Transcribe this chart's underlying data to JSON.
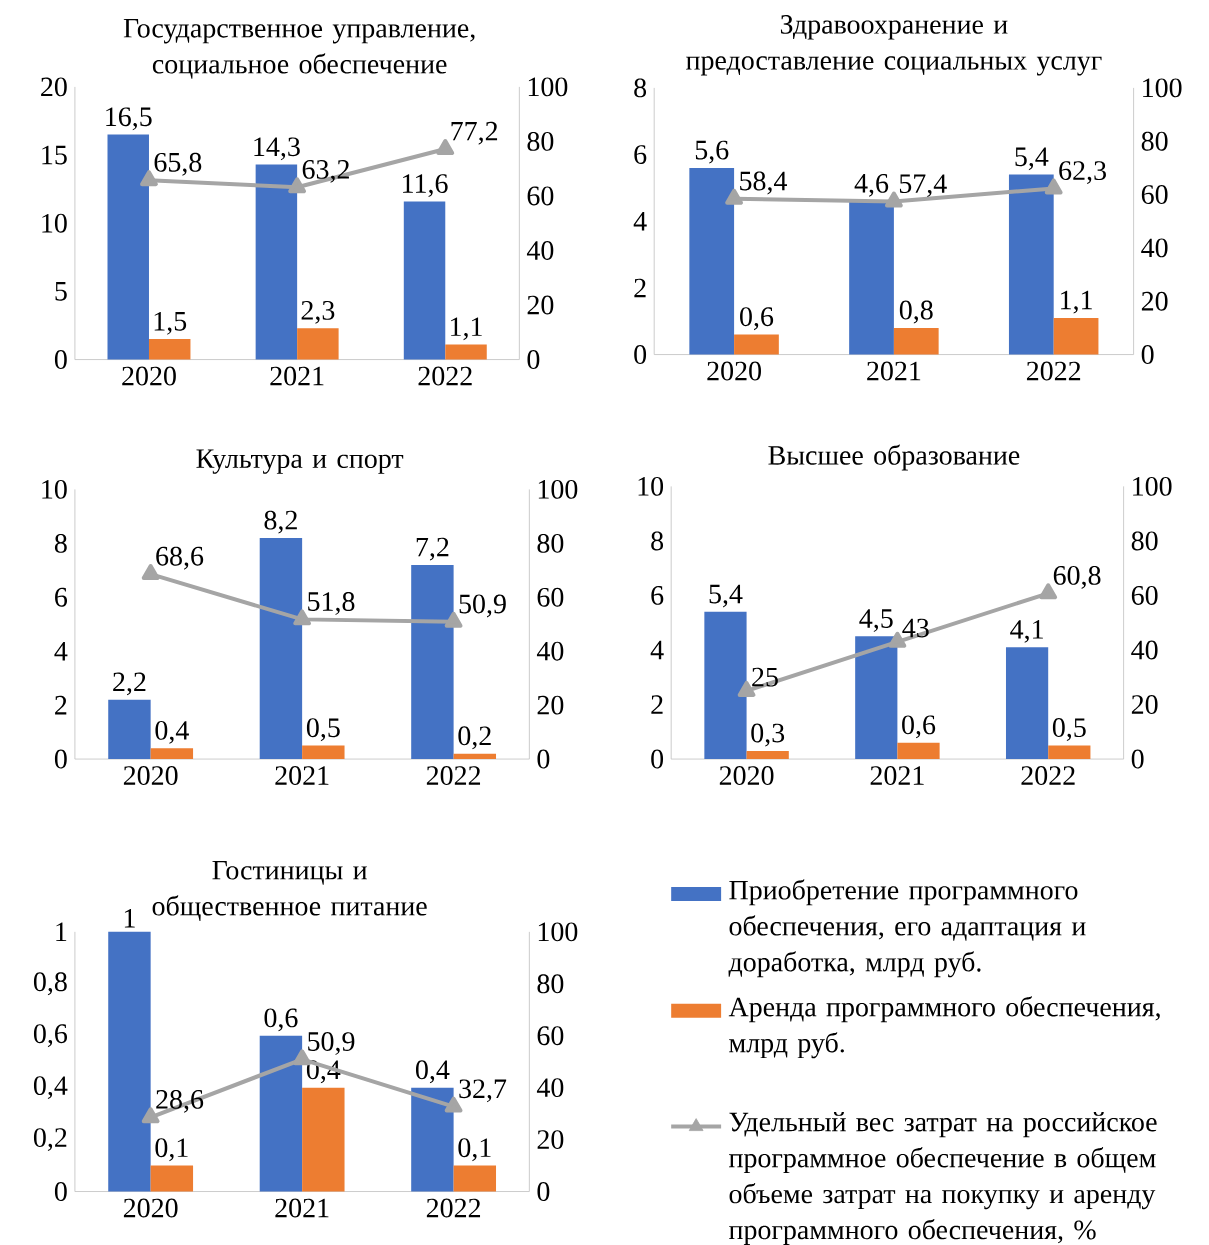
{
  "chart_data": [
    {
      "type": "bar",
      "title": "Государственное управление, социальное обеспечение",
      "categories": [
        "2020",
        "2021",
        "2022"
      ],
      "ylim": [
        0,
        20
      ],
      "yticks": [
        0,
        5,
        10,
        15,
        20
      ],
      "y2lim": [
        0,
        100
      ],
      "y2ticks": [
        0,
        20,
        40,
        60,
        80,
        100
      ],
      "series": [
        {
          "type": "bar",
          "color": "#4472c4",
          "values": [
            16.5,
            14.3,
            11.6
          ],
          "value_labels": [
            "16,5",
            "14,3",
            "11,6"
          ]
        },
        {
          "type": "bar",
          "color": "#ed7d31",
          "values": [
            1.5,
            2.3,
            1.1
          ],
          "value_labels": [
            "1,5",
            "2,3",
            "1,1"
          ]
        },
        {
          "type": "line",
          "axis": "y2",
          "marker": "triangle",
          "color": "#a5a5a5",
          "values": [
            65.8,
            63.2,
            77.2
          ],
          "value_labels": [
            "65,8",
            "63,2",
            "77,2"
          ]
        }
      ]
    },
    {
      "type": "bar",
      "title": "Здравоохранение и предоставление социальных услуг",
      "categories": [
        "2020",
        "2021",
        "2022"
      ],
      "ylim": [
        0,
        8
      ],
      "yticks": [
        0,
        2,
        4,
        6,
        8
      ],
      "y2lim": [
        0,
        100
      ],
      "y2ticks": [
        0,
        20,
        40,
        60,
        80,
        100
      ],
      "series": [
        {
          "type": "bar",
          "color": "#4472c4",
          "values": [
            5.6,
            4.6,
            5.4
          ],
          "value_labels": [
            "5,6",
            "4,6",
            "5,4"
          ]
        },
        {
          "type": "bar",
          "color": "#ed7d31",
          "values": [
            0.6,
            0.8,
            1.1
          ],
          "value_labels": [
            "0,6",
            "0,8",
            "1,1"
          ]
        },
        {
          "type": "line",
          "axis": "y2",
          "marker": "triangle",
          "color": "#a5a5a5",
          "values": [
            58.4,
            57.4,
            62.3
          ],
          "value_labels": [
            "58,4",
            "57,4",
            "62,3"
          ]
        }
      ]
    },
    {
      "type": "bar",
      "title": "Культура и спорт",
      "categories": [
        "2020",
        "2021",
        "2022"
      ],
      "ylim": [
        0,
        10
      ],
      "yticks": [
        0,
        2,
        4,
        6,
        8,
        10
      ],
      "y2lim": [
        0,
        100
      ],
      "y2ticks": [
        0,
        20,
        40,
        60,
        80,
        100
      ],
      "series": [
        {
          "type": "bar",
          "color": "#4472c4",
          "values": [
            2.2,
            8.2,
            7.2
          ],
          "value_labels": [
            "2,2",
            "8,2",
            "7,2"
          ]
        },
        {
          "type": "bar",
          "color": "#ed7d31",
          "values": [
            0.4,
            0.5,
            0.2
          ],
          "value_labels": [
            "0,4",
            "0,5",
            "0,2"
          ]
        },
        {
          "type": "line",
          "axis": "y2",
          "marker": "triangle",
          "color": "#a5a5a5",
          "values": [
            68.6,
            51.8,
            50.9
          ],
          "value_labels": [
            "68,6",
            "51,8",
            "50,9"
          ]
        }
      ]
    },
    {
      "type": "bar",
      "title": "Высшее образование",
      "categories": [
        "2020",
        "2021",
        "2022"
      ],
      "ylim": [
        0,
        10
      ],
      "yticks": [
        0,
        2,
        4,
        6,
        8,
        10
      ],
      "y2lim": [
        0,
        100
      ],
      "y2ticks": [
        0,
        20,
        40,
        60,
        80,
        100
      ],
      "series": [
        {
          "type": "bar",
          "color": "#4472c4",
          "values": [
            5.4,
            4.5,
            4.1
          ],
          "value_labels": [
            "5,4",
            "4,5",
            "4,1"
          ]
        },
        {
          "type": "bar",
          "color": "#ed7d31",
          "values": [
            0.3,
            0.6,
            0.5
          ],
          "value_labels": [
            "0,3",
            "0,6",
            "0,5"
          ]
        },
        {
          "type": "line",
          "axis": "y2",
          "marker": "triangle",
          "color": "#a5a5a5",
          "values": [
            25,
            43,
            60.8
          ],
          "value_labels": [
            "25",
            "43",
            "60,8"
          ]
        }
      ]
    },
    {
      "type": "bar",
      "title": "Гостиницы и общественное питание",
      "categories": [
        "2020",
        "2021",
        "2022"
      ],
      "ylim": [
        0,
        1
      ],
      "yticks": [
        0,
        {
          "value": 0.2,
          "label": "0,2"
        },
        {
          "value": 0.4,
          "label": "0,4"
        },
        {
          "value": 0.6,
          "label": "0,6"
        },
        {
          "value": 0.8,
          "label": "0,8"
        },
        1
      ],
      "y2lim": [
        0,
        100
      ],
      "y2ticks": [
        0,
        20,
        40,
        60,
        80,
        100
      ],
      "legend": "right",
      "series": [
        {
          "type": "bar",
          "name": "Приобретение программного обеспечения, его адаптация и доработка, млрд руб.",
          "color": "#4472c4",
          "values": [
            1,
            0.6,
            0.4
          ],
          "value_labels": [
            "1",
            "0,6",
            "0,4"
          ]
        },
        {
          "type": "bar",
          "name": "Аренда программного обеспечения, млрд руб.",
          "color": "#ed7d31",
          "values": [
            0.1,
            0.4,
            0.1
          ],
          "value_labels": [
            "0,1",
            "0,4",
            "0,1"
          ]
        },
        {
          "type": "line",
          "axis": "y2",
          "marker": "triangle",
          "name": "Удельный вес затрат на российское программное обеспечение в общем объеме затрат на покупку и аренду программного обеспечения, %",
          "color": "#a5a5a5",
          "values": [
            28.6,
            50.9,
            32.7
          ],
          "value_labels": [
            "28,6",
            "50,9",
            "32,7"
          ]
        }
      ]
    }
  ]
}
